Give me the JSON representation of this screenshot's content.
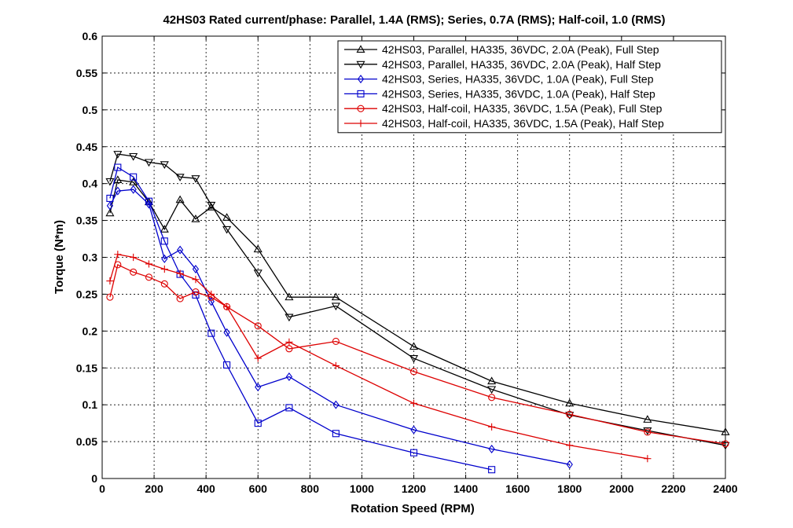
{
  "chart_data": {
    "type": "line",
    "title": "42HS03 Rated current/phase: Parallel, 1.4A (RMS); Series, 0.7A (RMS); Half-coil, 1.0 (RMS)",
    "xlabel": "Rotation Speed (RPM)",
    "ylabel": "Torque (N*m)",
    "xlim": [
      0,
      2400
    ],
    "ylim": [
      0,
      0.6
    ],
    "xticks": [
      0,
      200,
      400,
      600,
      800,
      1000,
      1200,
      1400,
      1600,
      1800,
      2000,
      2200,
      2400
    ],
    "yticks": [
      0,
      0.05,
      0.1,
      0.15,
      0.2,
      0.25,
      0.3,
      0.35,
      0.4,
      0.45,
      0.5,
      0.55,
      0.6
    ],
    "grid": true,
    "legend_position": "top-right",
    "series": [
      {
        "name": "42HS03, Parallel, HA335, 36VDC, 2.0A (Peak), Full Step",
        "color": "#000000",
        "marker": "triangle-up",
        "x": [
          30,
          60,
          120,
          180,
          240,
          300,
          360,
          420,
          480,
          600,
          720,
          900,
          1200,
          1500,
          1800,
          2100,
          2400
        ],
        "y": [
          0.36,
          0.405,
          0.402,
          0.375,
          0.338,
          0.378,
          0.352,
          0.368,
          0.354,
          0.311,
          0.246,
          0.246,
          0.179,
          0.132,
          0.102,
          0.08,
          0.063
        ]
      },
      {
        "name": "42HS03, Parallel, HA335, 36VDC, 2.0A (Peak), Half Step",
        "color": "#000000",
        "marker": "triangle-down",
        "x": [
          30,
          60,
          120,
          180,
          240,
          300,
          360,
          420,
          480,
          600,
          720,
          900,
          1200,
          1500,
          1800,
          2100,
          2400
        ],
        "y": [
          0.403,
          0.44,
          0.437,
          0.429,
          0.426,
          0.409,
          0.407,
          0.371,
          0.338,
          0.279,
          0.219,
          0.234,
          0.163,
          0.121,
          0.086,
          0.065,
          0.045
        ]
      },
      {
        "name": "42HS03, Series, HA335, 36VDC, 1.0A (Peak), Full Step",
        "color": "#0000cc",
        "marker": "diamond",
        "x": [
          30,
          60,
          120,
          180,
          240,
          300,
          360,
          420,
          480,
          600,
          720,
          900,
          1200,
          1500,
          1800
        ],
        "y": [
          0.37,
          0.39,
          0.392,
          0.372,
          0.298,
          0.31,
          0.284,
          0.24,
          0.198,
          0.124,
          0.138,
          0.1,
          0.066,
          0.04,
          0.019
        ]
      },
      {
        "name": "42HS03, Series, HA335, 36VDC, 1.0A (Peak), Half Step",
        "color": "#0000cc",
        "marker": "square",
        "x": [
          30,
          60,
          120,
          180,
          240,
          300,
          360,
          420,
          480,
          600,
          720,
          900,
          1200,
          1500
        ],
        "y": [
          0.38,
          0.422,
          0.409,
          0.376,
          0.322,
          0.277,
          0.249,
          0.197,
          0.154,
          0.075,
          0.096,
          0.061,
          0.035,
          0.012
        ]
      },
      {
        "name": "42HS03, Half-coil, HA335, 36VDC, 1.5A (Peak), Full Step",
        "color": "#dd0000",
        "marker": "circle",
        "x": [
          30,
          60,
          120,
          180,
          240,
          300,
          360,
          420,
          480,
          600,
          720,
          900,
          1200,
          1500,
          1800,
          2100,
          2400
        ],
        "y": [
          0.246,
          0.29,
          0.28,
          0.273,
          0.264,
          0.244,
          0.253,
          0.246,
          0.233,
          0.207,
          0.176,
          0.186,
          0.145,
          0.11,
          0.087,
          0.063,
          0.047
        ]
      },
      {
        "name": "42HS03, Half-coil, HA335, 36VDC, 1.5A (Peak), Half Step",
        "color": "#dd0000",
        "marker": "plus",
        "x": [
          30,
          60,
          120,
          180,
          240,
          300,
          360,
          420,
          480,
          600,
          720,
          900,
          1200,
          1500,
          1800,
          2100
        ],
        "y": [
          0.268,
          0.304,
          0.3,
          0.291,
          0.284,
          0.278,
          0.27,
          0.25,
          0.233,
          0.163,
          0.185,
          0.153,
          0.102,
          0.07,
          0.045,
          0.027
        ]
      }
    ]
  }
}
